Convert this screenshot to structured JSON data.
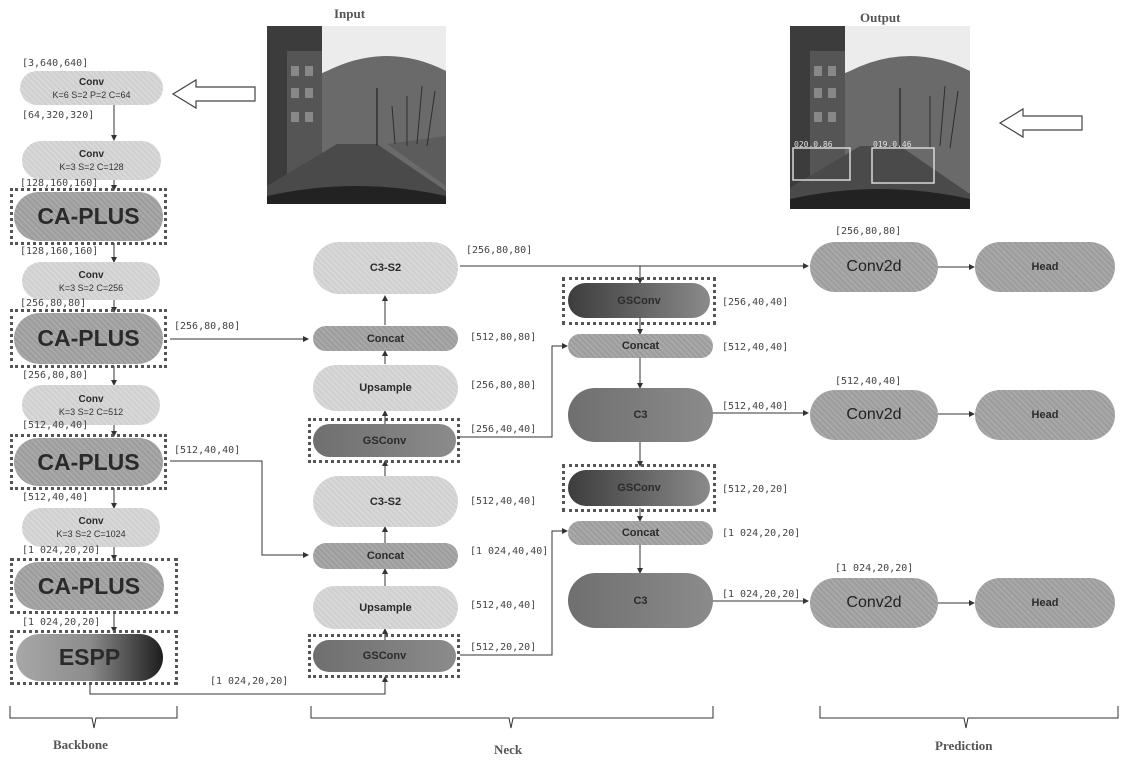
{
  "photos": {
    "input_title": "Input",
    "output_title": "Output",
    "det1": "020.0.86",
    "det2": "019.0.46"
  },
  "backbone": {
    "conv1": {
      "title": "Conv",
      "params": "K=6 S=2 P=2 C=64"
    },
    "conv2": {
      "title": "Conv",
      "params": "K=3 S=2 C=128"
    },
    "ca1": "CA-PLUS",
    "conv3": {
      "title": "Conv",
      "params": "K=3 S=2 C=256"
    },
    "ca2": "CA-PLUS",
    "conv4": {
      "title": "Conv",
      "params": "K=3 S=2 C=512"
    },
    "ca3": "CA-PLUS",
    "conv5": {
      "title": "Conv",
      "params": "K=3 S=2 C=1024"
    },
    "ca4": "CA-PLUS",
    "espp": "ESPP"
  },
  "neck": {
    "c3s2_top": "C3-S2",
    "concat_top": "Concat",
    "upsample_top": "Upsample",
    "gsconv_top": "GSConv",
    "c3s2_mid": "C3-S2",
    "concat_mid": "Concat",
    "upsample_bot": "Upsample",
    "gsconv_bot": "GSConv"
  },
  "pan": {
    "gsconv1": "GSConv",
    "concat1": "Concat",
    "c3_1": "C3",
    "gsconv2": "GSConv",
    "concat2": "Concat",
    "c3_2": "C3"
  },
  "prediction": {
    "conv2d": "Conv2d",
    "head": "Head"
  },
  "dims": {
    "d3_640": "[3,640,640]",
    "d64_320": "[64,320,320]",
    "d128_160a": "[128,160,160]",
    "d128_160b": "[128,160,160]",
    "d256_80a": "[256,80,80]",
    "d256_80b": "[256,80,80]",
    "d256_80c": "[256,80,80]",
    "d512_40a": "[512,40,40]",
    "d512_40b": "[512,40,40]",
    "d512_40c": "[512,40,40]",
    "d1024_20a": "[1 024,20,20]",
    "d1024_20b": "[1 024,20,20]",
    "d1024_20c": "[1 024,20,20]",
    "n512_80": "[512,80,80]",
    "n256_80": "[256,80,80]",
    "n256_40": "[256,40,40]",
    "n512_40": "[512,40,40]",
    "n1024_40": "[1 024,40,40]",
    "n512_40b": "[512,40,40]",
    "n512_20": "[512,20,20]",
    "c256_80": "[256,80,80]",
    "g256_40": "[256,40,40]",
    "g512_40": "[512,40,40]",
    "c3_512_40": "[512,40,40]",
    "g512_20": "[512,20,20]",
    "cc1024": "[1 024,20,20]",
    "c3_1024": "[1 024,20,20]",
    "p256": "[256,80,80]",
    "p512": "[512,40,40]",
    "p1024": "[1 024,20,20]"
  },
  "sections": {
    "backbone": "Backbone",
    "neck": "Neck",
    "prediction": "Prediction"
  }
}
